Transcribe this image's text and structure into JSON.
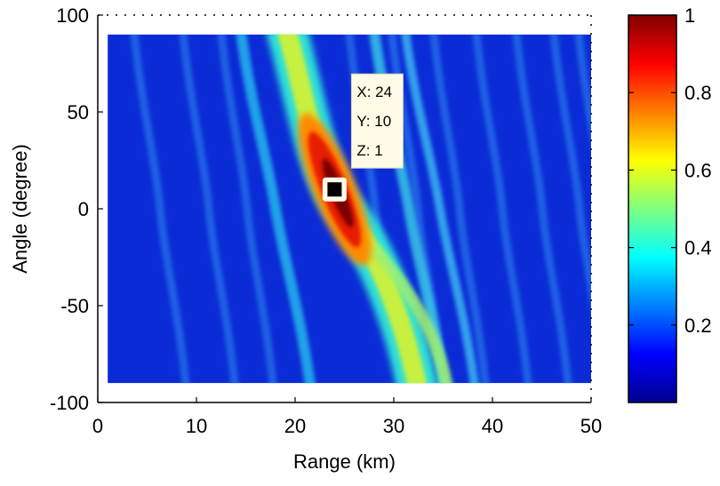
{
  "chart_data": {
    "type": "heatmap",
    "title": "",
    "xlabel": "Range (km)",
    "ylabel": "Angle (degree)",
    "xlim": [
      0,
      50
    ],
    "ylim": [
      -100,
      100
    ],
    "data_extent": {
      "x": [
        1,
        50
      ],
      "y": [
        -90,
        90
      ]
    },
    "xticks": [
      0,
      10,
      20,
      30,
      40,
      50
    ],
    "yticks": [
      -100,
      -50,
      0,
      50,
      100
    ],
    "colorbar": {
      "range": [
        0,
        1
      ],
      "ticks": [
        0.2,
        0.4,
        0.6,
        0.8,
        1
      ],
      "colormap": "jet"
    },
    "peak": {
      "x": 24,
      "y": 10,
      "z": 1
    },
    "datatip": {
      "x_label": "X: 24",
      "y_label": "Y: 10",
      "z_label": "Z: 1"
    },
    "background_color": "#0b2bd6",
    "peak_color": "#7a0000",
    "grid": false
  }
}
